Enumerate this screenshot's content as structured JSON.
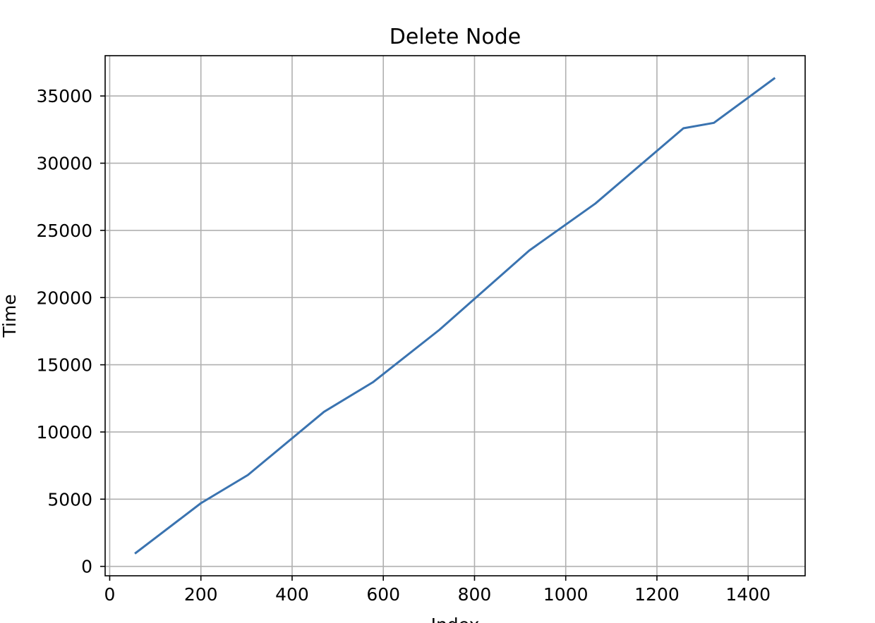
{
  "chart_data": {
    "type": "line",
    "title": "Delete Node",
    "xlabel": "Index",
    "ylabel": "Time",
    "xlim": [
      -10,
      1525
    ],
    "ylim": [
      -700,
      38000
    ],
    "xticks": [
      0,
      200,
      400,
      600,
      800,
      1000,
      1200,
      1400
    ],
    "yticks": [
      0,
      5000,
      10000,
      15000,
      20000,
      25000,
      30000,
      35000
    ],
    "xtick_labels": [
      "0",
      "200",
      "400",
      "600",
      "800",
      "1000",
      "1200",
      "1400"
    ],
    "ytick_labels": [
      "0",
      "5000",
      "10000",
      "15000",
      "20000",
      "25000",
      "30000",
      "35000"
    ],
    "grid": true,
    "legend": "none",
    "series": [
      {
        "color": "#3a73b0",
        "x": [
          57,
          200,
          303,
          470,
          577,
          723,
          920,
          1065,
          1258,
          1325,
          1457
        ],
        "y": [
          1000,
          4700,
          6800,
          11500,
          13700,
          17600,
          23500,
          27000,
          32600,
          33000,
          36300
        ]
      }
    ]
  }
}
